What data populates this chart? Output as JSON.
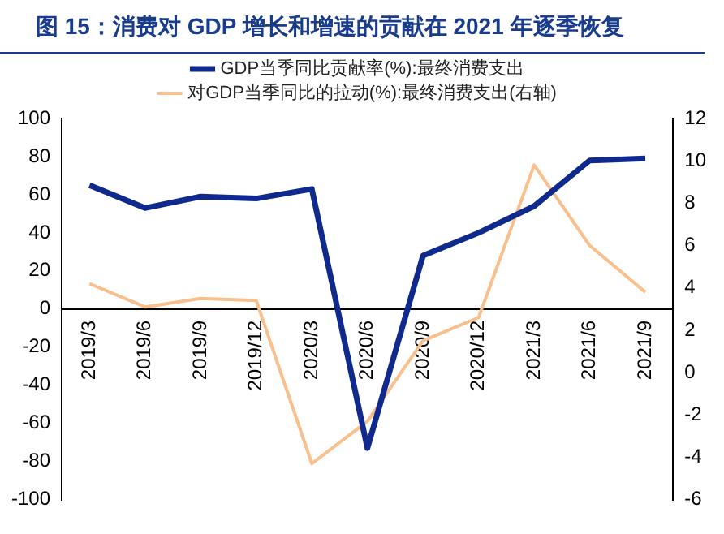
{
  "chart_data": {
    "type": "line",
    "title": "图 15：消费对 GDP 增长和增速的贡献在 2021 年逐季恢复",
    "categories": [
      "2019/3",
      "2019/6",
      "2019/9",
      "2019/12",
      "2020/3",
      "2020/6",
      "2020/9",
      "2020/12",
      "2021/3",
      "2021/6",
      "2021/9"
    ],
    "series": [
      {
        "name": "GDP当季同比贡献率(%):最终消费支出",
        "color": "#0f2a8c",
        "values": [
          65,
          53,
          59,
          58,
          63,
          -73,
          28,
          40,
          54,
          78,
          79
        ]
      },
      {
        "name": "对GDP当季同比的拉动(%):最终消费支出(右轴)",
        "color": "#f9c08e",
        "axis": "y2",
        "values": [
          4.2,
          3.1,
          3.5,
          3.4,
          -4.3,
          -2.3,
          1.5,
          2.6,
          9.8,
          6.0,
          3.8
        ]
      }
    ],
    "ylim": [
      -100,
      100
    ],
    "yticks": [
      -100,
      -80,
      -60,
      -40,
      -20,
      0,
      20,
      40,
      60,
      80,
      100
    ],
    "y2lim": [
      -6,
      12
    ],
    "y2ticks": [
      -6,
      -4,
      -2,
      0,
      2,
      4,
      6,
      8,
      10,
      12
    ],
    "grid": false,
    "legend": "top",
    "marker": "none",
    "line_style": "solid"
  }
}
